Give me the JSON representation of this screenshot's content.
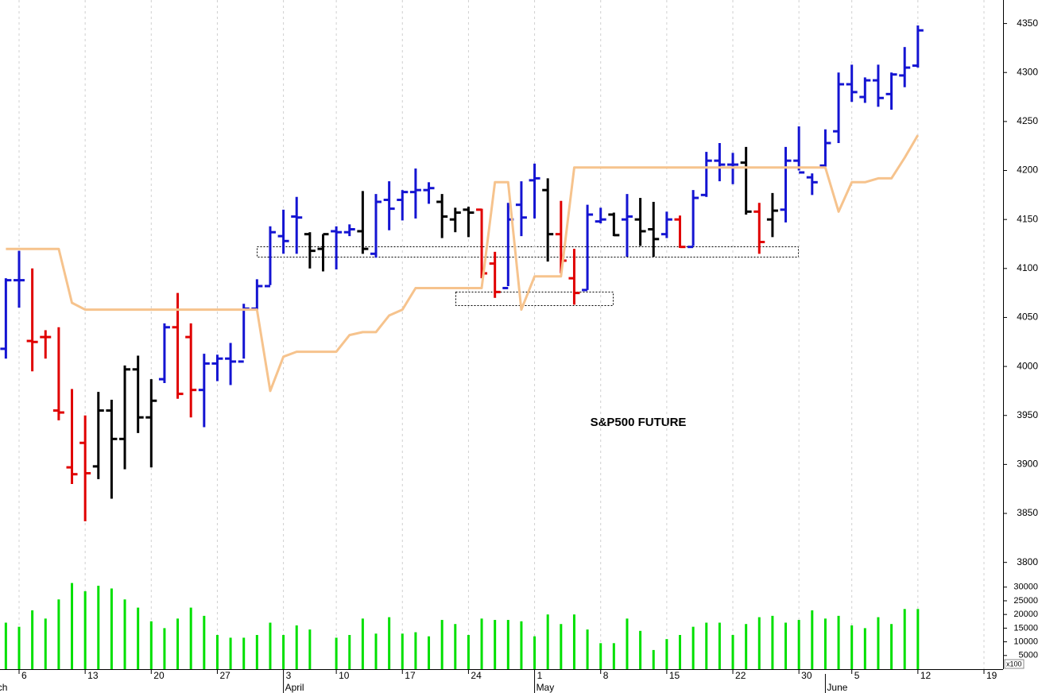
{
  "chart_data": [
    {
      "type": "ohlc",
      "annotation": "S&P500 FUTURE",
      "categories": [
        null,
        null,
        null,
        "6",
        null,
        null,
        null,
        null,
        "13",
        null,
        null,
        null,
        null,
        "20",
        null,
        null,
        null,
        null,
        "27",
        null,
        null,
        null,
        null,
        "3",
        null,
        null,
        null,
        "10",
        null,
        null,
        null,
        null,
        "17",
        null,
        null,
        null,
        null,
        "24",
        null,
        null,
        null,
        null,
        "1",
        null,
        null,
        null,
        null,
        "8",
        null,
        null,
        null,
        null,
        "15",
        null,
        null,
        null,
        null,
        "22",
        null,
        null,
        null,
        null,
        "30",
        null,
        null,
        null,
        "5",
        null,
        null,
        null,
        null,
        "12",
        null,
        null,
        null,
        null,
        "19"
      ],
      "months": [
        "March",
        null,
        null,
        null,
        null,
        null,
        null,
        null,
        null,
        null,
        null,
        null,
        null,
        null,
        null,
        null,
        null,
        null,
        null,
        null,
        null,
        null,
        null,
        "April",
        null,
        null,
        null,
        null,
        null,
        null,
        null,
        null,
        null,
        null,
        null,
        null,
        null,
        null,
        null,
        null,
        null,
        null,
        "May",
        null,
        null,
        null,
        null,
        null,
        null,
        null,
        null,
        null,
        null,
        null,
        null,
        null,
        null,
        null,
        null,
        null,
        null,
        null,
        null,
        null,
        "June",
        null,
        null,
        null,
        null,
        null,
        null,
        null,
        null,
        null,
        null,
        null,
        null
      ],
      "open": [
        null,
        null,
        4018,
        4088,
        4026,
        4030,
        3955,
        3897,
        3922,
        3898,
        3955,
        3926,
        3997,
        3948,
        3987,
        4040,
        4030,
        3976,
        4003,
        4008,
        4005,
        4059,
        4082,
        4133,
        4153,
        4135,
        4120,
        4138,
        4137,
        4138,
        4115,
        4170,
        4170,
        4178,
        4180,
        4168,
        4150,
        4160,
        4160,
        4105,
        4080,
        4165,
        4190,
        4180,
        4135,
        4090,
        4078,
        4148,
        4155,
        4150,
        4150,
        4140,
        4135,
        4150,
        4122,
        4175,
        4210,
        4206,
        4208,
        4158,
        4150,
        4160,
        4210,
        4193,
        4205,
        4240,
        4288,
        4275,
        4292,
        4278,
        4297,
        4307,
        null,
        null,
        null,
        null,
        null
      ],
      "high": [
        null,
        null,
        4090,
        4118,
        4100,
        4037,
        4040,
        3977,
        3950,
        3974,
        3966,
        4001,
        4011,
        3987,
        4044,
        4075,
        4044,
        4013,
        4012,
        4024,
        4064,
        4089,
        4143,
        4160,
        4173,
        4137,
        4135,
        4143,
        4145,
        4179,
        4176,
        4189,
        4180,
        4202,
        4188,
        4176,
        4162,
        4163,
        4161,
        4117,
        4167,
        4189,
        4207,
        4192,
        4169,
        4120,
        4165,
        4162,
        4157,
        4176,
        4172,
        4168,
        4158,
        4154,
        4180,
        4219,
        4228,
        4218,
        4224,
        4167,
        4177,
        4224,
        4245,
        4197,
        4242,
        4300,
        4308,
        4295,
        4308,
        4300,
        4326,
        4348,
        null,
        null,
        null,
        null,
        null
      ],
      "low": [
        null,
        null,
        4008,
        4060,
        3995,
        4008,
        3945,
        3880,
        3842,
        3885,
        3865,
        3895,
        3932,
        3897,
        3983,
        3967,
        3948,
        3938,
        3985,
        3981,
        4008,
        4058,
        4083,
        4115,
        4115,
        4100,
        4097,
        4099,
        4133,
        4115,
        4111,
        4139,
        4149,
        4151,
        4166,
        4131,
        4137,
        4132,
        4090,
        4070,
        4082,
        4133,
        4151,
        4107,
        4095,
        4063,
        4078,
        4146,
        4133,
        4112,
        4123,
        4112,
        4131,
        4121,
        4123,
        4173,
        4189,
        4186,
        4155,
        4115,
        4132,
        4147,
        4200,
        4175,
        4204,
        4228,
        4270,
        4269,
        4265,
        4262,
        4285,
        4305,
        null,
        null,
        null,
        null,
        null
      ],
      "close": [
        null,
        null,
        4088,
        4088,
        4025,
        4030,
        3953,
        3890,
        3891,
        3955,
        3926,
        3997,
        3948,
        3965,
        4040,
        3972,
        3976,
        4003,
        4008,
        4005,
        4059,
        4082,
        4137,
        4128,
        4152,
        4118,
        4135,
        4137,
        4140,
        4120,
        4168,
        4161,
        4178,
        4180,
        4182,
        4153,
        4157,
        4157,
        4095,
        4076,
        4150,
        4152,
        4192,
        4135,
        4108,
        4075,
        4155,
        4150,
        4134,
        4153,
        4138,
        4130,
        4150,
        4122,
        4172,
        4210,
        4206,
        4206,
        4158,
        4127,
        4159,
        4210,
        4198,
        4188,
        4228,
        4288,
        4280,
        4292,
        4274,
        4298,
        4305,
        4343,
        null,
        null,
        null,
        null,
        null
      ],
      "bar_colors": [
        null,
        null,
        "#1414d2",
        "#1414d2",
        "#e00000",
        "#e00000",
        "#e00000",
        "#e00000",
        "#e00000",
        "#000000",
        "#000000",
        "#000000",
        "#000000",
        "#000000",
        "#1414d2",
        "#e00000",
        "#e00000",
        "#1414d2",
        "#1414d2",
        "#1414d2",
        "#1414d2",
        "#1414d2",
        "#1414d2",
        "#1414d2",
        "#1414d2",
        "#000000",
        "#000000",
        "#1414d2",
        "#1414d2",
        "#000000",
        "#1414d2",
        "#1414d2",
        "#1414d2",
        "#1414d2",
        "#1414d2",
        "#000000",
        "#000000",
        "#000000",
        "#e00000",
        "#e00000",
        "#1414d2",
        "#1414d2",
        "#1414d2",
        "#000000",
        "#e00000",
        "#e00000",
        "#1414d2",
        "#1414d2",
        "#000000",
        "#1414d2",
        "#000000",
        "#000000",
        "#1414d2",
        "#e00000",
        "#1414d2",
        "#1414d2",
        "#1414d2",
        "#1414d2",
        "#000000",
        "#e00000",
        "#000000",
        "#1414d2",
        "#1414d2",
        "#1414d2",
        "#1414d2",
        "#1414d2",
        "#1414d2",
        "#1414d2",
        "#1414d2",
        "#1414d2",
        "#1414d2",
        "#1414d2",
        null,
        null,
        null,
        null,
        null
      ],
      "series": [
        {
          "type": "line",
          "color": "#f6c38d",
          "values": [
            null,
            null,
            4120,
            4120,
            4120,
            4120,
            4120,
            4065,
            4058,
            4058,
            4058,
            4058,
            4058,
            4058,
            4058,
            4058,
            4058,
            4058,
            4058,
            4058,
            4058,
            4058,
            3975,
            4010,
            4015,
            4015,
            4015,
            4015,
            4032,
            4035,
            4035,
            4052,
            4058,
            4080,
            4080,
            4080,
            4080,
            4080,
            4080,
            4188,
            4188,
            4058,
            4092,
            4092,
            4092,
            4203,
            4203,
            4203,
            4203,
            4203,
            4203,
            4203,
            4203,
            4203,
            4203,
            4203,
            4203,
            4203,
            4203,
            4203,
            4203,
            4203,
            4203,
            4203,
            4203,
            4158,
            4188,
            4188,
            4192,
            4192,
            4213,
            4236,
            null,
            null,
            null,
            null,
            null
          ]
        }
      ],
      "ylim": [
        3790,
        4374
      ],
      "yticks": [
        3800,
        3850,
        3900,
        3950,
        4000,
        4050,
        4100,
        4150,
        4200,
        4250,
        4300,
        4350
      ],
      "grid": true
    },
    {
      "type": "bar",
      "color": "#00e000",
      "y_unit_label": "x100",
      "values": [
        null,
        null,
        17000,
        15500,
        21500,
        18500,
        25500,
        31500,
        28500,
        30500,
        29500,
        25500,
        22500,
        17500,
        15000,
        18500,
        22500,
        19500,
        12500,
        11500,
        11500,
        12500,
        17000,
        12500,
        16000,
        14500,
        null,
        11500,
        12500,
        18500,
        13000,
        19000,
        13000,
        13500,
        12000,
        18000,
        16500,
        12500,
        18500,
        18000,
        18000,
        17500,
        12000,
        20000,
        16500,
        20000,
        14500,
        9500,
        9500,
        18500,
        14000,
        7000,
        11000,
        12500,
        15500,
        17000,
        17000,
        12500,
        16500,
        19000,
        19500,
        17000,
        18000,
        21500,
        18500,
        19500,
        16000,
        15000,
        19000,
        16500,
        22000,
        22000,
        null,
        null,
        null,
        null,
        null
      ],
      "ylim": [
        0,
        34000
      ],
      "yticks": [
        5000,
        10000,
        15000,
        20000,
        25000,
        30000
      ]
    }
  ]
}
